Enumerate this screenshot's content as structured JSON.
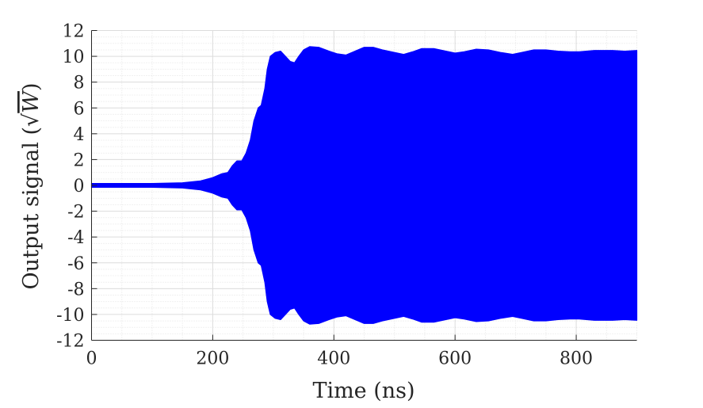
{
  "chart_data": {
    "type": "line",
    "xlabel": "Time (ns)",
    "ylabel": {
      "prefix": "Output signal (",
      "radical": "√",
      "unit": "W",
      "suffix": ")"
    },
    "xlim": [
      0,
      900
    ],
    "ylim": [
      -12,
      12
    ],
    "x_ticks": [
      0,
      200,
      400,
      600,
      800
    ],
    "y_ticks": [
      -12,
      -10,
      -8,
      -6,
      -4,
      -2,
      0,
      2,
      4,
      6,
      8,
      10,
      12
    ],
    "grid": true,
    "minor_grid": true,
    "series": [
      {
        "style": "dense oscillation (filled envelope)",
        "color": "#0000ff",
        "envelope_upper": [
          [
            0,
            0.15
          ],
          [
            100,
            0.15
          ],
          [
            150,
            0.2
          ],
          [
            180,
            0.35
          ],
          [
            200,
            0.6
          ],
          [
            215,
            0.9
          ],
          [
            225,
            1.0
          ],
          [
            232,
            1.5
          ],
          [
            240,
            1.9
          ],
          [
            248,
            1.9
          ],
          [
            255,
            2.5
          ],
          [
            262,
            3.5
          ],
          [
            268,
            5.0
          ],
          [
            275,
            6.0
          ],
          [
            280,
            6.2
          ],
          [
            286,
            7.5
          ],
          [
            290,
            9.0
          ],
          [
            295,
            10.0
          ],
          [
            303,
            10.3
          ],
          [
            312,
            10.4
          ],
          [
            320,
            10.0
          ],
          [
            328,
            9.6
          ],
          [
            335,
            9.5
          ],
          [
            342,
            10.0
          ],
          [
            350,
            10.5
          ],
          [
            360,
            10.75
          ],
          [
            375,
            10.7
          ],
          [
            392,
            10.4
          ],
          [
            405,
            10.2
          ],
          [
            420,
            10.1
          ],
          [
            435,
            10.4
          ],
          [
            450,
            10.7
          ],
          [
            465,
            10.7
          ],
          [
            480,
            10.5
          ],
          [
            500,
            10.3
          ],
          [
            515,
            10.15
          ],
          [
            530,
            10.35
          ],
          [
            545,
            10.6
          ],
          [
            565,
            10.6
          ],
          [
            585,
            10.4
          ],
          [
            600,
            10.25
          ],
          [
            615,
            10.35
          ],
          [
            635,
            10.55
          ],
          [
            655,
            10.5
          ],
          [
            675,
            10.3
          ],
          [
            695,
            10.15
          ],
          [
            710,
            10.3
          ],
          [
            730,
            10.5
          ],
          [
            750,
            10.5
          ],
          [
            770,
            10.4
          ],
          [
            790,
            10.35
          ],
          [
            805,
            10.35
          ],
          [
            830,
            10.45
          ],
          [
            860,
            10.45
          ],
          [
            880,
            10.4
          ],
          [
            900,
            10.45
          ]
        ],
        "envelope_lower": [
          [
            0,
            -0.15
          ],
          [
            100,
            -0.15
          ],
          [
            150,
            -0.2
          ],
          [
            180,
            -0.35
          ],
          [
            200,
            -0.6
          ],
          [
            215,
            -0.9
          ],
          [
            225,
            -1.0
          ],
          [
            232,
            -1.5
          ],
          [
            240,
            -1.9
          ],
          [
            248,
            -1.9
          ],
          [
            255,
            -2.5
          ],
          [
            262,
            -3.5
          ],
          [
            268,
            -5.0
          ],
          [
            275,
            -6.0
          ],
          [
            280,
            -6.2
          ],
          [
            286,
            -7.5
          ],
          [
            290,
            -9.0
          ],
          [
            295,
            -10.0
          ],
          [
            303,
            -10.3
          ],
          [
            312,
            -10.4
          ],
          [
            320,
            -10.0
          ],
          [
            328,
            -9.6
          ],
          [
            335,
            -9.5
          ],
          [
            342,
            -10.0
          ],
          [
            350,
            -10.5
          ],
          [
            360,
            -10.75
          ],
          [
            375,
            -10.7
          ],
          [
            392,
            -10.4
          ],
          [
            405,
            -10.2
          ],
          [
            420,
            -10.1
          ],
          [
            435,
            -10.4
          ],
          [
            450,
            -10.7
          ],
          [
            465,
            -10.7
          ],
          [
            480,
            -10.5
          ],
          [
            500,
            -10.3
          ],
          [
            515,
            -10.15
          ],
          [
            530,
            -10.35
          ],
          [
            545,
            -10.6
          ],
          [
            565,
            -10.6
          ],
          [
            585,
            -10.4
          ],
          [
            600,
            -10.25
          ],
          [
            615,
            -10.35
          ],
          [
            635,
            -10.55
          ],
          [
            655,
            -10.5
          ],
          [
            675,
            -10.3
          ],
          [
            695,
            -10.15
          ],
          [
            710,
            -10.3
          ],
          [
            730,
            -10.5
          ],
          [
            750,
            -10.5
          ],
          [
            770,
            -10.4
          ],
          [
            790,
            -10.35
          ],
          [
            805,
            -10.35
          ],
          [
            830,
            -10.45
          ],
          [
            860,
            -10.45
          ],
          [
            880,
            -10.4
          ],
          [
            900,
            -10.45
          ]
        ]
      }
    ]
  }
}
